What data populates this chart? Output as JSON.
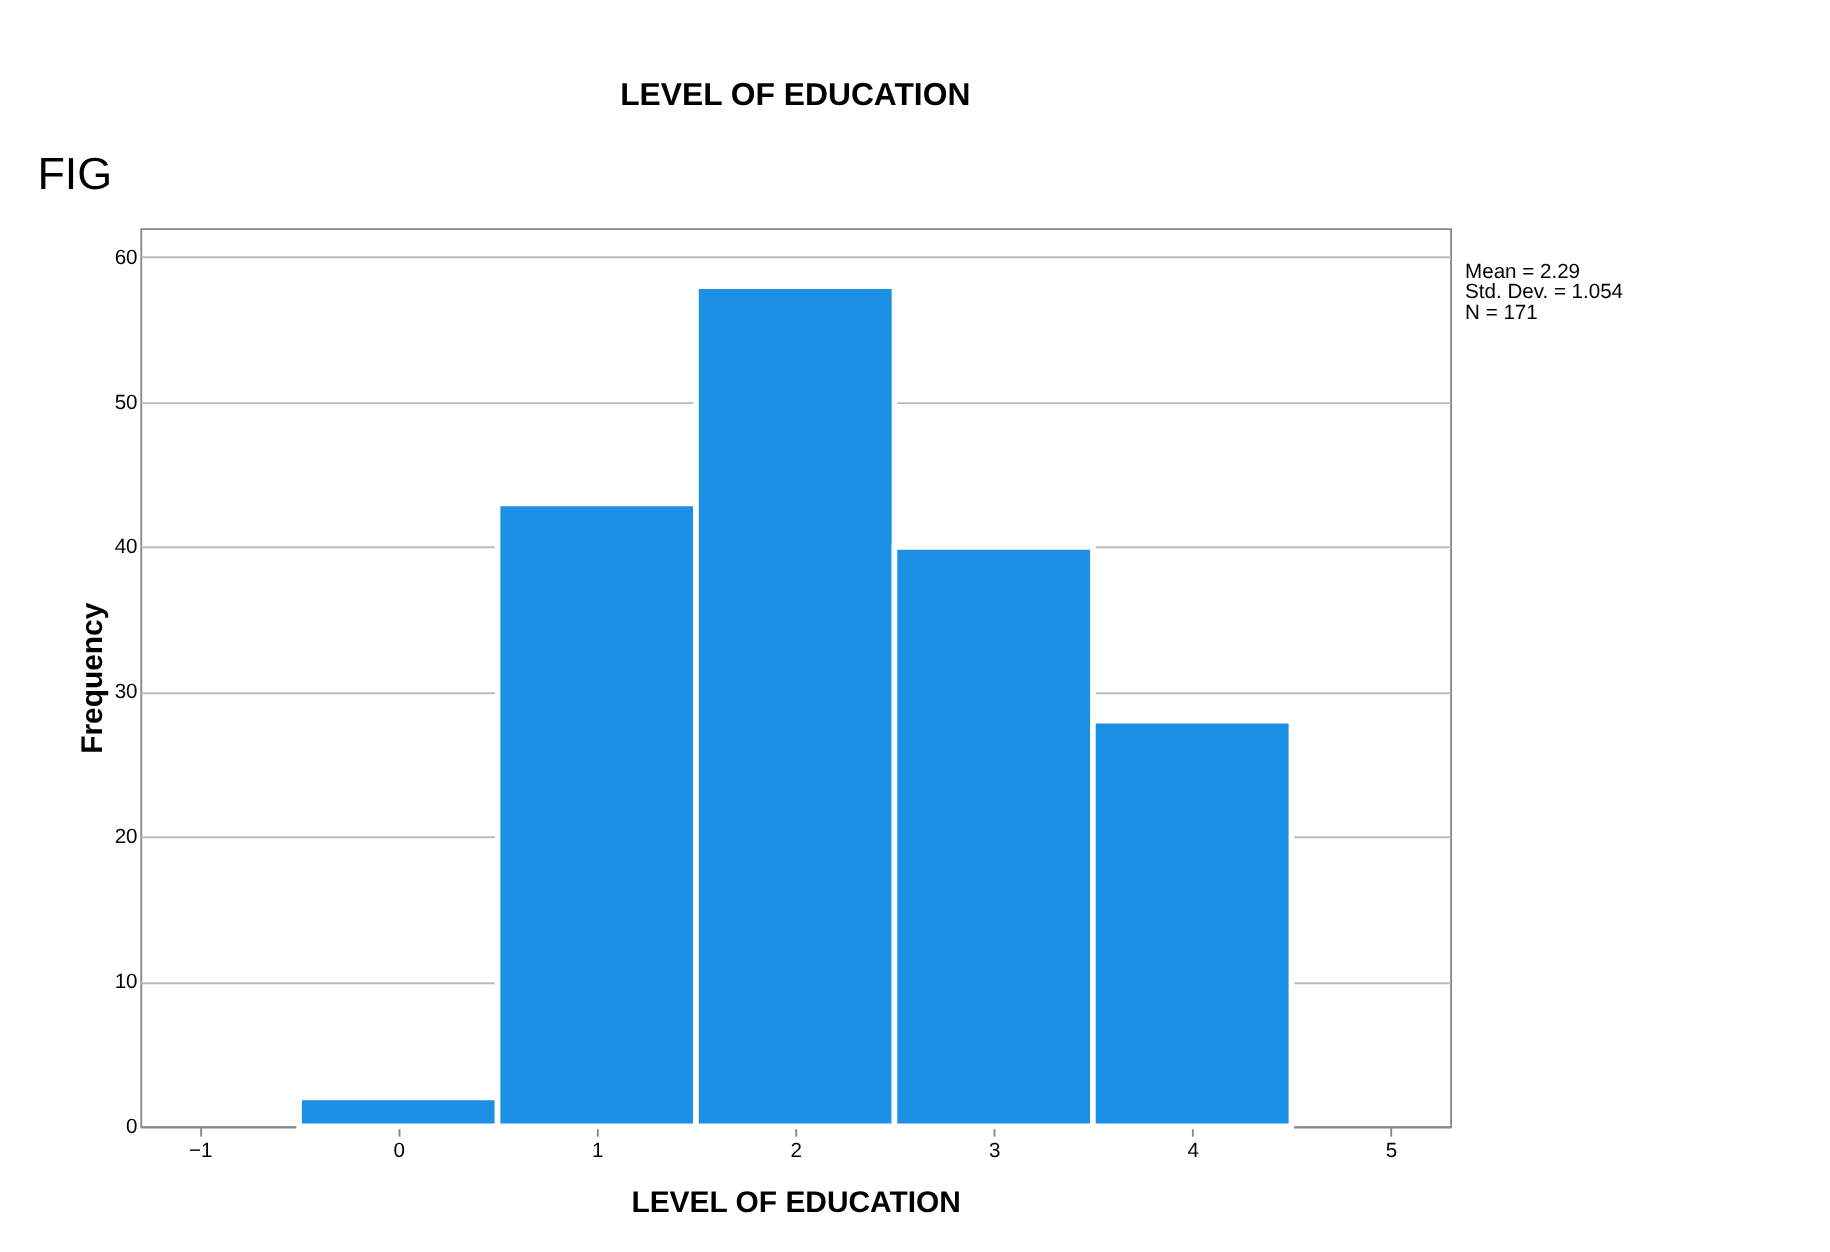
{
  "chart_data": {
    "type": "histogram",
    "title": "LEVEL OF EDUCATION",
    "xlabel": "LEVEL OF EDUCATION",
    "ylabel": "Frequency",
    "bins": [
      -0.5,
      0.5,
      1.5,
      2.5,
      3.5,
      4.5
    ],
    "values": [
      2,
      43,
      58,
      40,
      28
    ],
    "color": "#1a8fe3",
    "xlim": [
      -1.3,
      5.3
    ],
    "xticks": [
      -1,
      0,
      1,
      2,
      3,
      4,
      5
    ],
    "ylim": [
      0,
      62
    ],
    "yticks": [
      0,
      10,
      20,
      30,
      40,
      50,
      60
    ],
    "grid": "y",
    "annotations": [
      "FIG",
      "Mean = 2.29",
      "Std. Dev. = 1.054",
      "N = 171"
    ]
  }
}
